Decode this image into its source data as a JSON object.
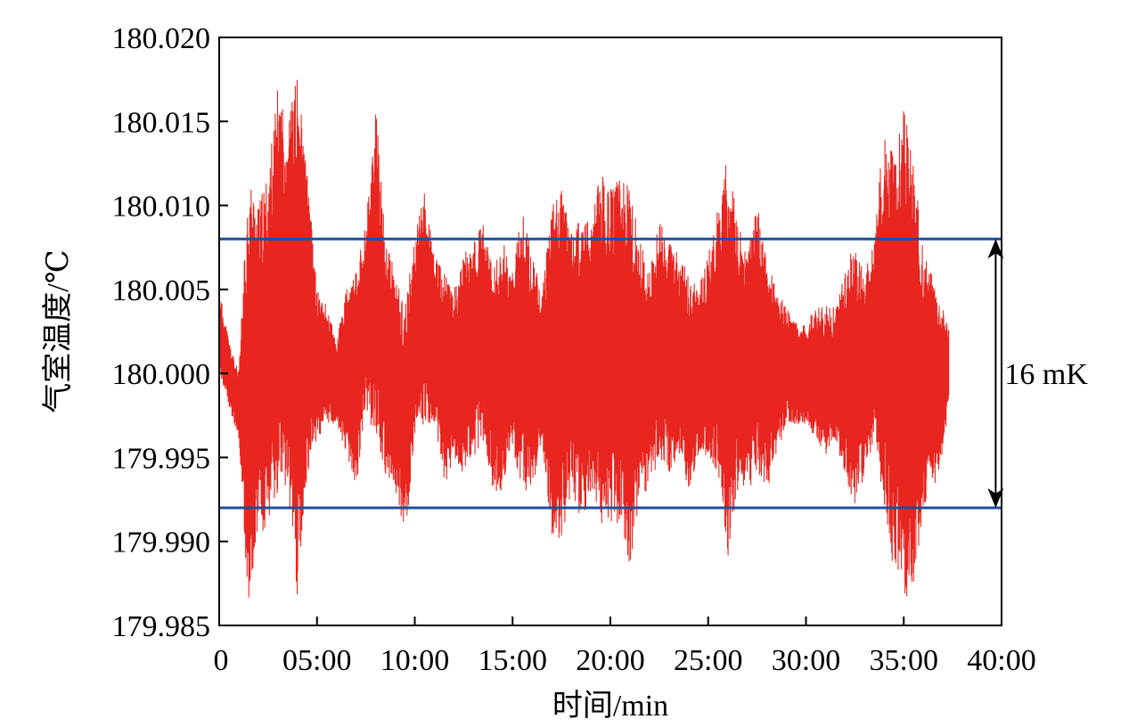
{
  "chart_data": {
    "type": "line",
    "title": "",
    "xlabel": "时间/min",
    "ylabel": "气室温度/℃",
    "xlim": [
      0,
      40
    ],
    "ylim": [
      179.985,
      180.02
    ],
    "x_ticks": [
      0,
      5,
      10,
      15,
      20,
      25,
      30,
      35,
      40
    ],
    "x_tick_labels": [
      "0",
      "05:00",
      "10:00",
      "15:00",
      "20:00",
      "25:00",
      "30:00",
      "35:00",
      "40:00"
    ],
    "y_ticks": [
      179.985,
      179.99,
      179.995,
      180.0,
      180.005,
      180.01,
      180.015,
      180.02
    ],
    "y_tick_labels": [
      "179.985",
      "179.990",
      "179.995",
      "180.000",
      "180.005",
      "180.010",
      "180.015",
      "180.020"
    ],
    "grid": false,
    "series": [
      {
        "color": "#e8251f",
        "x_min": [
          0.0,
          0.5,
          1.0,
          1.5,
          2.0,
          2.5,
          3.0,
          3.5,
          4.0,
          4.5,
          5.0,
          5.5,
          6.0,
          6.5,
          7.0,
          7.5,
          8.0,
          8.5,
          9.0,
          9.5,
          10.0,
          10.5,
          11.0,
          11.5,
          12.0,
          12.5,
          13.0,
          13.5,
          14.0,
          14.5,
          15.0,
          15.5,
          16.0,
          16.5,
          17.0,
          17.5,
          18.0,
          18.5,
          19.0,
          19.5,
          20.0,
          20.5,
          21.0,
          21.5,
          22.0,
          22.5,
          23.0,
          23.5,
          24.0,
          24.5,
          25.0,
          25.5,
          26.0,
          26.5,
          27.0,
          27.5,
          28.0,
          28.5,
          29.0,
          29.5,
          30.0,
          30.5,
          31.0,
          31.5,
          32.0,
          32.5,
          33.0,
          33.5,
          34.0,
          34.5,
          35.0,
          35.5,
          36.0,
          36.5,
          37.0,
          37.3
        ],
        "low": [
          180.0,
          179.998,
          179.996,
          179.986,
          179.99,
          179.991,
          179.993,
          179.993,
          179.986,
          179.994,
          179.996,
          179.997,
          179.997,
          179.995,
          179.993,
          179.998,
          179.996,
          179.994,
          179.993,
          179.99,
          179.996,
          179.997,
          179.997,
          179.993,
          179.995,
          179.994,
          179.995,
          179.996,
          179.993,
          179.993,
          179.995,
          179.993,
          179.993,
          179.996,
          179.99,
          179.99,
          179.993,
          179.991,
          179.993,
          179.991,
          179.991,
          179.991,
          179.988,
          179.993,
          179.993,
          179.995,
          179.994,
          179.995,
          179.993,
          179.995,
          179.995,
          179.994,
          179.989,
          179.993,
          179.993,
          179.994,
          179.993,
          179.995,
          179.997,
          179.997,
          179.997,
          179.996,
          179.995,
          179.996,
          179.994,
          179.992,
          179.994,
          179.996,
          179.992,
          179.988,
          179.987,
          179.986,
          179.992,
          179.993,
          179.995,
          179.998
        ],
        "high": [
          180.005,
          180.002,
          180.0,
          180.012,
          180.01,
          180.012,
          180.017,
          180.015,
          180.018,
          180.012,
          180.005,
          180.004,
          180.002,
          180.005,
          180.006,
          180.009,
          180.016,
          180.008,
          180.006,
          180.004,
          180.008,
          180.011,
          180.007,
          180.006,
          180.005,
          180.007,
          180.008,
          180.009,
          180.006,
          180.008,
          180.006,
          180.01,
          180.007,
          180.005,
          180.01,
          180.011,
          180.009,
          180.009,
          180.009,
          180.012,
          180.011,
          180.012,
          180.011,
          180.008,
          180.006,
          180.009,
          180.008,
          180.007,
          180.006,
          180.005,
          180.007,
          180.01,
          180.013,
          180.009,
          180.007,
          180.01,
          180.007,
          180.005,
          180.004,
          180.003,
          180.003,
          180.004,
          180.004,
          180.004,
          180.006,
          180.008,
          180.006,
          180.008,
          180.015,
          180.013,
          180.016,
          180.013,
          180.007,
          180.006,
          180.004,
          180.003
        ]
      },
      {
        "color": "#1f4e9a",
        "x": [
          0,
          40
        ],
        "y": [
          180.008,
          180.008
        ]
      },
      {
        "color": "#1f4e9a",
        "x": [
          0,
          40
        ],
        "y": [
          179.992,
          179.992
        ]
      }
    ],
    "annotations": [
      {
        "text": "16 mK",
        "x_min": 39.7,
        "from": 179.992,
        "to": 180.008
      }
    ]
  }
}
